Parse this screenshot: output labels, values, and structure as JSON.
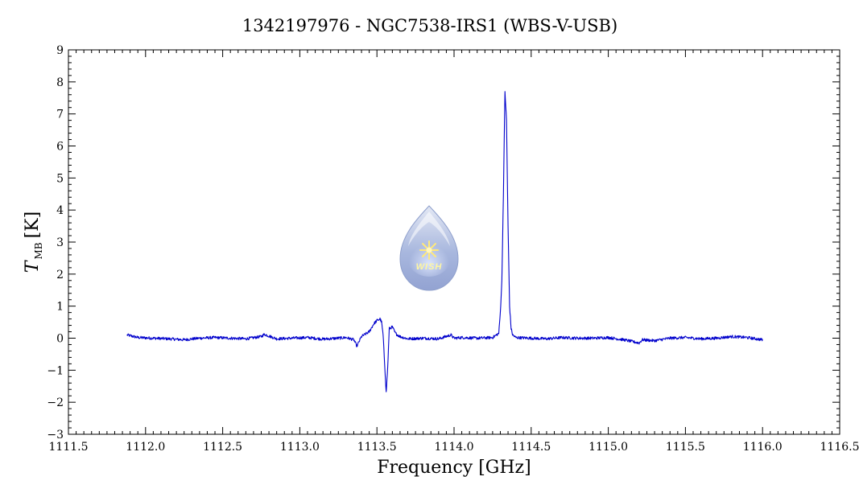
{
  "chart_data": {
    "type": "line",
    "title": "1342197976 - NGC7538-IRS1 (WBS-V-USB)",
    "xlabel": "Frequency [GHz]",
    "ylabel": {
      "symbol": "T",
      "subscript": "MB",
      "unit": "[K]"
    },
    "xlim": [
      1111.5,
      1116.5
    ],
    "ylim": [
      -3,
      9
    ],
    "xticks": [
      "1111.5",
      "1112.0",
      "1112.5",
      "1113.0",
      "1113.5",
      "1114.0",
      "1114.5",
      "1115.0",
      "1115.5",
      "1116.0",
      "1116.5"
    ],
    "yticks": [
      "−3",
      "−2",
      "−1",
      "0",
      "1",
      "2",
      "3",
      "4",
      "5",
      "6",
      "7",
      "8",
      "9"
    ],
    "grid": false,
    "line_color": "#0000cc",
    "series": [
      {
        "x": [
          1111.88,
          1111.95,
          1112.05,
          1112.15,
          1112.25,
          1112.35,
          1112.45,
          1112.55,
          1112.65,
          1112.75,
          1112.77,
          1112.85,
          1112.95,
          1113.05,
          1113.15,
          1113.25,
          1113.3,
          1113.35,
          1113.37,
          1113.4,
          1113.45,
          1113.48,
          1113.5,
          1113.52,
          1113.53,
          1113.54,
          1113.55,
          1113.56,
          1113.57,
          1113.58,
          1113.6,
          1113.62,
          1113.65,
          1113.7,
          1113.8,
          1113.9,
          1113.98,
          1114.0,
          1114.05,
          1114.15,
          1114.25,
          1114.29,
          1114.3,
          1114.31,
          1114.32,
          1114.33,
          1114.34,
          1114.35,
          1114.36,
          1114.37,
          1114.38,
          1114.4,
          1114.5,
          1114.6,
          1114.7,
          1114.8,
          1114.9,
          1115.0,
          1115.1,
          1115.2,
          1115.22,
          1115.3,
          1115.4,
          1115.5,
          1115.6,
          1115.7,
          1115.8,
          1115.9,
          1116.0
        ],
        "y": [
          0.1,
          0.02,
          0.0,
          -0.02,
          -0.05,
          0.0,
          0.02,
          0.0,
          -0.02,
          0.05,
          0.12,
          -0.02,
          0.0,
          0.02,
          -0.03,
          0.0,
          0.02,
          -0.05,
          -0.25,
          0.05,
          0.2,
          0.45,
          0.55,
          0.6,
          0.5,
          0.1,
          -0.8,
          -1.7,
          -0.9,
          0.3,
          0.35,
          0.15,
          0.05,
          -0.02,
          0.0,
          -0.02,
          0.1,
          0.0,
          0.02,
          0.0,
          0.02,
          0.15,
          0.8,
          1.8,
          4.5,
          7.7,
          6.8,
          3.5,
          1.0,
          0.3,
          0.1,
          0.02,
          0.0,
          -0.02,
          0.02,
          0.0,
          0.0,
          0.02,
          -0.05,
          -0.15,
          -0.05,
          -0.08,
          0.0,
          0.02,
          -0.02,
          0.0,
          0.05,
          0.02,
          -0.05
        ]
      }
    ],
    "logo": {
      "text": "WISH"
    }
  }
}
